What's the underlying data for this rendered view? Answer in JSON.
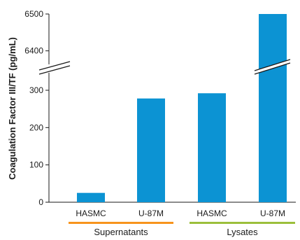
{
  "chart_data": {
    "type": "bar",
    "ylabel": "Coagulation Factor III/TF (pg/mL)",
    "categories": [
      "HASMC",
      "U-87M",
      "HASMC",
      "U-87M"
    ],
    "values": [
      25,
      278,
      292,
      6500
    ],
    "bar_color": "#0c93d3",
    "groups": [
      {
        "label": "Supernatants",
        "categories": [
          0,
          1
        ],
        "color": "#f7941d"
      },
      {
        "label": "Lysates",
        "categories": [
          2,
          3
        ],
        "color": "#9cbf3b"
      }
    ],
    "axis_break": true,
    "y_lower_segment": {
      "range": [
        0,
        300
      ],
      "ticks": [
        "0",
        "100",
        "200",
        "300"
      ]
    },
    "y_upper_segment": {
      "range": [
        6350,
        6500
      ],
      "ticks": [
        "6400",
        "6500"
      ]
    }
  }
}
